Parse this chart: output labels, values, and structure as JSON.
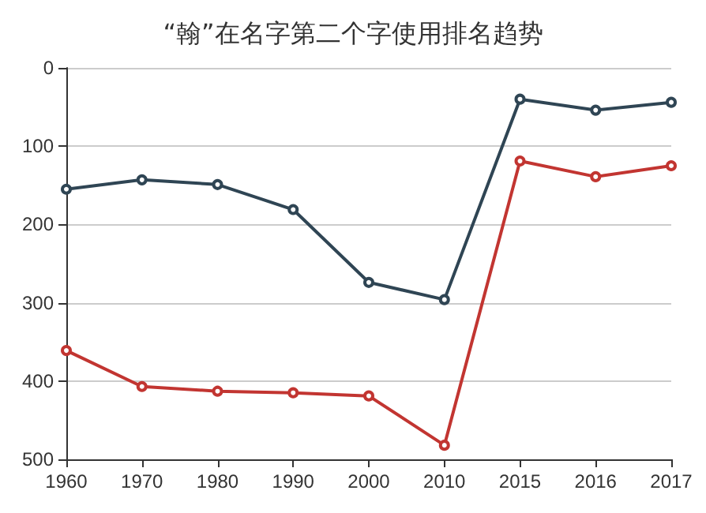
{
  "chart_data": {
    "type": "line",
    "title": "“翰”在名字第二个字使用排名趋势",
    "categories": [
      "1960",
      "1970",
      "1980",
      "1990",
      "2000",
      "2010",
      "2015",
      "2016",
      "2017"
    ],
    "series": [
      {
        "color": "#2f4554",
        "values": [
          155,
          143,
          149,
          181,
          274,
          296,
          40,
          54,
          44
        ]
      },
      {
        "color": "#c23531",
        "values": [
          361,
          407,
          413,
          415,
          419,
          482,
          119,
          139,
          125
        ]
      }
    ],
    "ylim": [
      500,
      0
    ],
    "yticks": [
      0,
      100,
      200,
      300,
      400,
      500
    ],
    "grid": "y",
    "marker": "circle",
    "line_style": "solid"
  }
}
